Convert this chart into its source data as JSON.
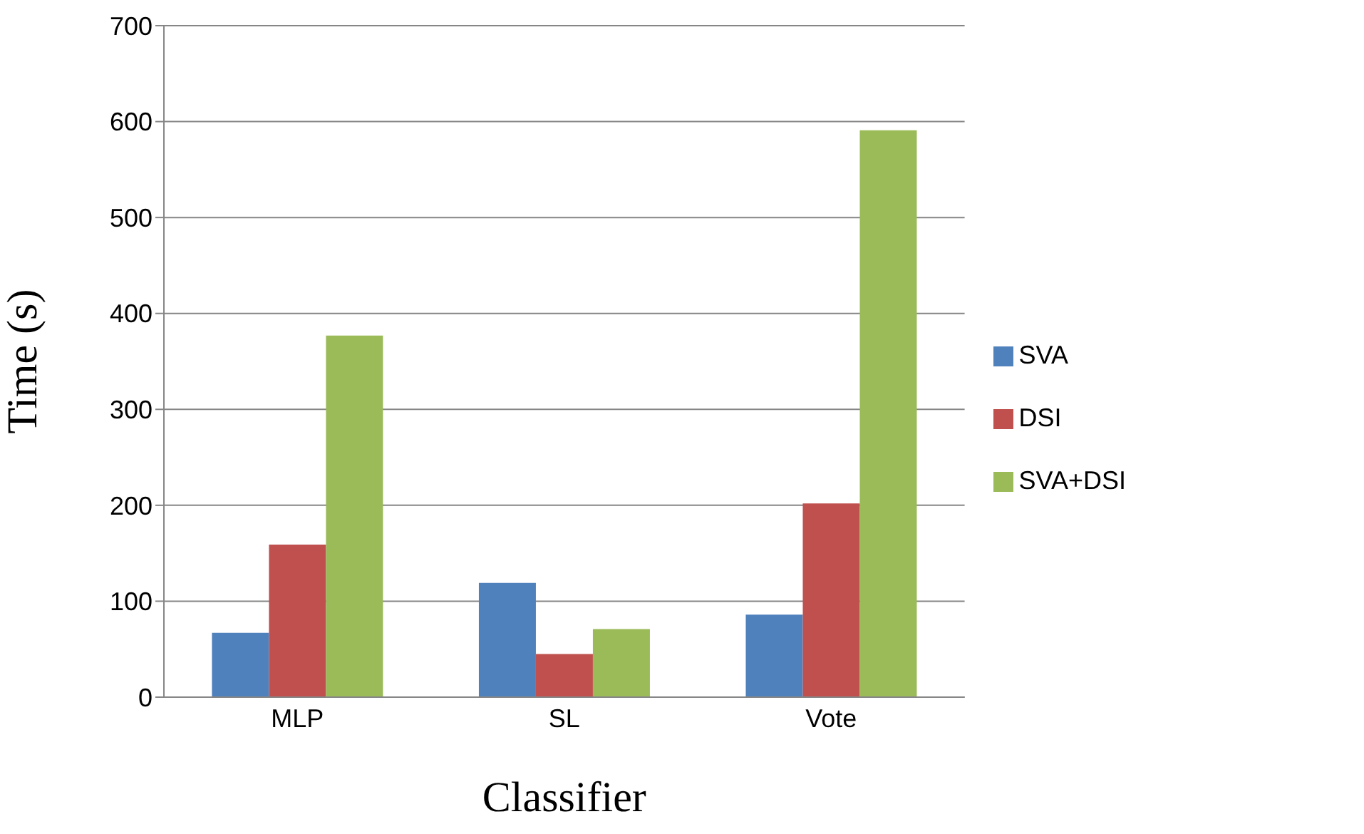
{
  "chart_data": {
    "type": "bar",
    "xlabel": "Classifier",
    "ylabel": "Time (s)",
    "categories": [
      "MLP",
      "SL",
      "Vote"
    ],
    "series": [
      {
        "name": "SVA",
        "color": "#4f81bd",
        "values": [
          67,
          119,
          86
        ]
      },
      {
        "name": "DSI",
        "color": "#c0504d",
        "values": [
          159,
          45,
          202
        ]
      },
      {
        "name": "SVA+DSI",
        "color": "#9bbb59",
        "values": [
          377,
          71,
          591
        ]
      }
    ],
    "ylim": [
      0,
      700
    ],
    "yticks": [
      0,
      100,
      200,
      300,
      400,
      500,
      600,
      700
    ],
    "grid": "y",
    "legend": "right"
  }
}
